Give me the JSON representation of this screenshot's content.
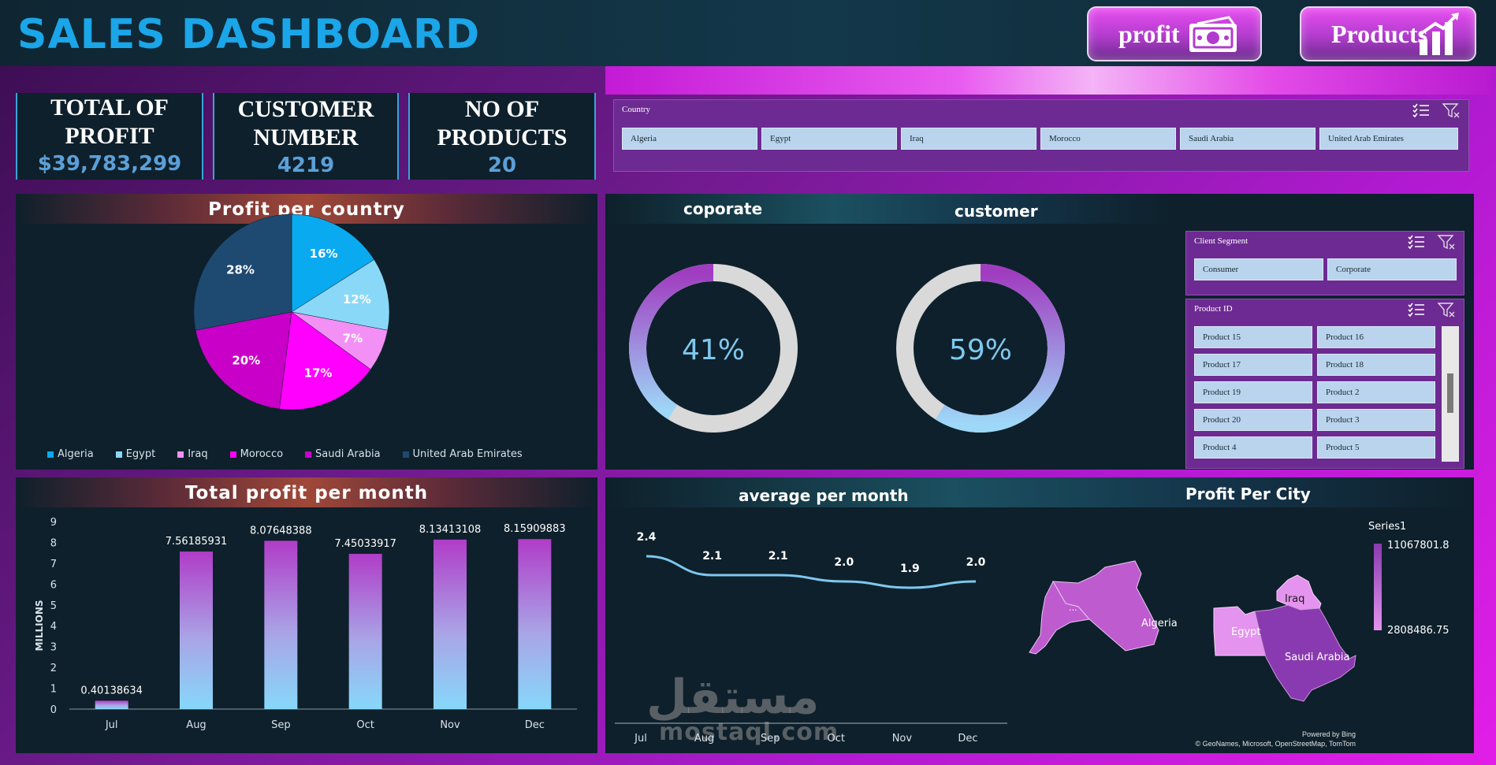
{
  "header": {
    "title": "SALES DASHBOARD",
    "nav": [
      {
        "label": "profit",
        "icon": "money-bill-icon"
      },
      {
        "label": "Products",
        "icon": "bar-growth-icon"
      }
    ]
  },
  "kpis": [
    {
      "label_1": "TOTAL OF",
      "label_2": "PROFIT",
      "value": "$39,783,299"
    },
    {
      "label_1": "CUSTOMER",
      "label_2": "NUMBER",
      "value": "4219"
    },
    {
      "label_1": "NO OF",
      "label_2": "PRODUCTS",
      "value": "20"
    }
  ],
  "country_slicer": {
    "header": "Country",
    "items": [
      "Algeria",
      "Egypt",
      "Iraq",
      "Morocco",
      "Saudi Arabia",
      "United Arab Emirates"
    ]
  },
  "segment_slicer": {
    "header": "Client Segment",
    "items": [
      "Consumer",
      "Corporate"
    ]
  },
  "product_slicer": {
    "header": "Product ID",
    "items": [
      "Product 15",
      "Product 16",
      "Product 17",
      "Product 18",
      "Product 19",
      "Product 2",
      "Product 20",
      "Product 3",
      "Product 4",
      "Product 5"
    ]
  },
  "panels": {
    "profit_per_country": "Profit per country",
    "coporate": "coporate",
    "customer": "customer",
    "total_profit_per_month": "Total profit per month",
    "average_per_month": "average per month",
    "profit_per_city": "Profit Per City"
  },
  "watermark": {
    "arabic": "مستقل",
    "latin": "mostaql.com"
  },
  "map": {
    "legend_title": "Series1",
    "max_label": "11067801.8",
    "min_label": "2808486.75",
    "regions": [
      "Algeria",
      "Egypt",
      "Iraq",
      "Saudi Arabia"
    ],
    "ellipsis": "...",
    "powered_1": "Powered by Bing",
    "powered_2": "© GeoNames, Microsoft, OpenStreetMap, TomTom",
    "colors": {
      "high": "#8a3ab0",
      "low": "#e493ee"
    }
  },
  "chart_data": [
    {
      "type": "pie",
      "title": "Profit per country",
      "categories": [
        "Algeria",
        "Egypt",
        "Iraq",
        "Morocco",
        "Saudi Arabia",
        "United Arab Emirates"
      ],
      "values": [
        16,
        12,
        7,
        17,
        20,
        28
      ],
      "labels": [
        "16%",
        "12%",
        "7%",
        "17%",
        "20%",
        "28%"
      ],
      "colors": [
        "#0aaaf0",
        "#8ad8f8",
        "#f390f5",
        "#ff00ff",
        "#c800c8",
        "#1e4a72"
      ],
      "legend": "bottom"
    },
    {
      "type": "pie",
      "subtype": "donut",
      "title": "coporate",
      "value": 41,
      "label": "41%",
      "rest_color": "#d9d9d9"
    },
    {
      "type": "pie",
      "subtype": "donut",
      "title": "customer",
      "value": 59,
      "label": "59%",
      "rest_color": "#d9d9d9"
    },
    {
      "type": "bar",
      "title": "Total profit per month",
      "categories": [
        "Jul",
        "Aug",
        "Sep",
        "Oct",
        "Nov",
        "Dec"
      ],
      "values": [
        0.40138634,
        7.56185931,
        8.07648388,
        7.45033917,
        8.13413108,
        8.15909883
      ],
      "labels": [
        "0.40138634",
        "7.56185931",
        "8.07648388",
        "7.45033917",
        "8.13413108",
        "8.15909883"
      ],
      "ylabel": "MILLIONS",
      "ylim": [
        0,
        9
      ],
      "yticks": [
        "0",
        "1",
        "2",
        "3",
        "4",
        "5",
        "6",
        "7",
        "8",
        "9"
      ]
    },
    {
      "type": "line",
      "title": "average per month",
      "categories": [
        "Jul",
        "Aug",
        "Sep",
        "Oct",
        "Nov",
        "Dec"
      ],
      "values": [
        2.4,
        2.1,
        2.1,
        2.0,
        1.9,
        2.0
      ],
      "labels": [
        "2.4",
        "2.1",
        "2.1",
        "2.0",
        "1.9",
        "2.0"
      ],
      "color": "#7ec8ee"
    }
  ]
}
